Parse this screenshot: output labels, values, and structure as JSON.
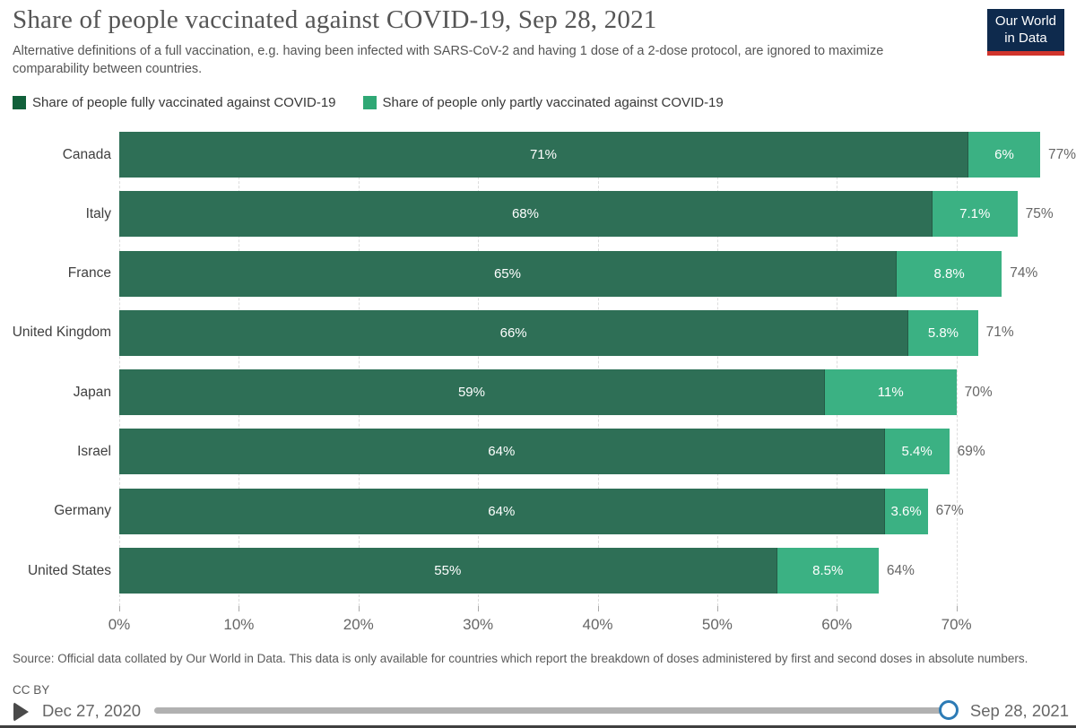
{
  "header": {
    "title": "Share of people vaccinated against COVID-19, Sep 28, 2021",
    "subtitle": "Alternative definitions of a full vaccination, e.g. having been infected with SARS-CoV-2 and having 1 dose of a 2-dose protocol, are ignored to maximize comparability between countries.",
    "logo_line1": "Our World",
    "logo_line2": "in Data"
  },
  "colors": {
    "fully_bar": "#2e6f56",
    "partly_bar": "#3bb183",
    "fully_swatch": "#11603a",
    "partly_swatch": "#2fa875",
    "handle_blue": "#2d7bb5",
    "logo_navy": "#0e2a4d",
    "logo_red": "#d0342c"
  },
  "legend": [
    {
      "label": "Share of people fully vaccinated against COVID-19",
      "color": "#11603a"
    },
    {
      "label": "Share of people only partly vaccinated against COVID-19",
      "color": "#2fa875"
    }
  ],
  "chart_data": {
    "type": "bar",
    "orientation": "horizontal",
    "stacked": true,
    "categories": [
      "Canada",
      "Italy",
      "France",
      "United Kingdom",
      "Japan",
      "Israel",
      "Germany",
      "United States"
    ],
    "series": [
      {
        "name": "Share of people fully vaccinated against COVID-19",
        "color": "#2e6f56",
        "values": [
          71,
          68,
          65,
          66,
          59,
          64,
          64,
          55
        ],
        "labels": [
          "71%",
          "68%",
          "65%",
          "66%",
          "59%",
          "64%",
          "64%",
          "55%"
        ]
      },
      {
        "name": "Share of people only partly vaccinated against COVID-19",
        "color": "#3bb183",
        "values": [
          6,
          7.1,
          8.8,
          5.8,
          11,
          5.4,
          3.6,
          8.5
        ],
        "labels": [
          "6%",
          "7.1%",
          "8.8%",
          "5.8%",
          "11%",
          "5.4%",
          "3.6%",
          "8.5%"
        ]
      }
    ],
    "totals": [
      "77%",
      "75%",
      "74%",
      "71%",
      "70%",
      "69%",
      "67%",
      "64%"
    ],
    "x_ticks": [
      {
        "value": 0,
        "label": "0%"
      },
      {
        "value": 10,
        "label": "10%"
      },
      {
        "value": 20,
        "label": "20%"
      },
      {
        "value": 30,
        "label": "30%"
      },
      {
        "value": 40,
        "label": "40%"
      },
      {
        "value": 50,
        "label": "50%"
      },
      {
        "value": 60,
        "label": "60%"
      },
      {
        "value": 70,
        "label": "70%"
      }
    ],
    "xlim": [
      0,
      80
    ],
    "grid": "vertical-dashed",
    "legend_position": "top"
  },
  "footer": {
    "source": "Source: Official data collated by Our World in Data. This data is only available for countries which report the breakdown of doses administered by first and second doses in absolute numbers.",
    "license": "CC BY"
  },
  "timeline": {
    "start_date": "Dec 27, 2020",
    "end_date": "Sep 28, 2021"
  }
}
